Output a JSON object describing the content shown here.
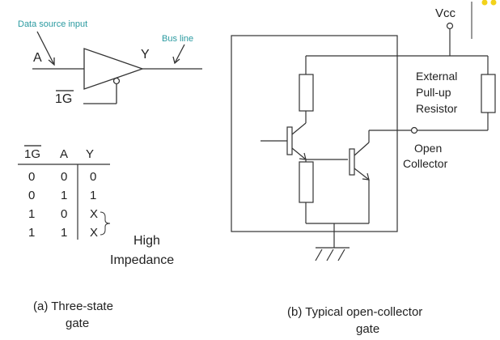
{
  "gate": {
    "data_source_label": "Data source input",
    "bus_line_label": "Bus line",
    "input_label": "A",
    "output_label": "Y",
    "enable_label": "1G"
  },
  "truth_table": {
    "headers": [
      "1G",
      "A",
      "Y"
    ],
    "rows": [
      [
        "0",
        "0",
        "0"
      ],
      [
        "0",
        "1",
        "1"
      ],
      [
        "1",
        "0",
        "X"
      ],
      [
        "1",
        "1",
        "X"
      ]
    ],
    "high_impedance_line1": "High",
    "high_impedance_line2": "Impedance"
  },
  "open_collector": {
    "vcc_label": "Vcc",
    "resistor_line1": "External",
    "resistor_line2": "Pull-up",
    "resistor_line3": "Resistor",
    "open_line1": "Open",
    "open_line2": "Collector"
  },
  "captions": {
    "a_line1": "(a) Three-state",
    "a_line2": "gate",
    "b_line1": "(b) Typical open-collector",
    "b_line2": "gate"
  },
  "colors": {
    "label_teal": "#2a9aa0",
    "line": "#333333",
    "accent_yellow": "#f2d21a"
  }
}
